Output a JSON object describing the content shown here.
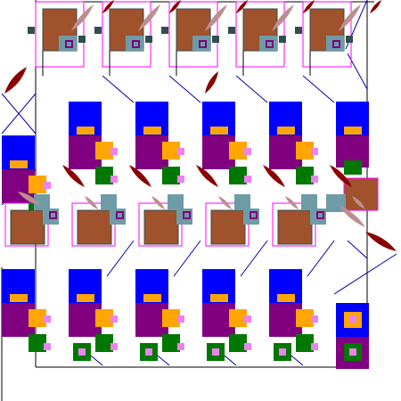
{
  "colors": {
    "background": "#ffffff",
    "frame": "#000000",
    "brown": "#a0522d",
    "teal": "#6e9ca6",
    "slate": "#2f4f4f",
    "blue": "#0000ff",
    "purple": "#800080",
    "orange": "#ffa500",
    "green": "#007700",
    "pink": "#ee82ee",
    "maroon": "#8b0000",
    "rosy": "#bc8f8f",
    "line": "#0000aa",
    "magenta_outline": "#ff00ff"
  }
}
